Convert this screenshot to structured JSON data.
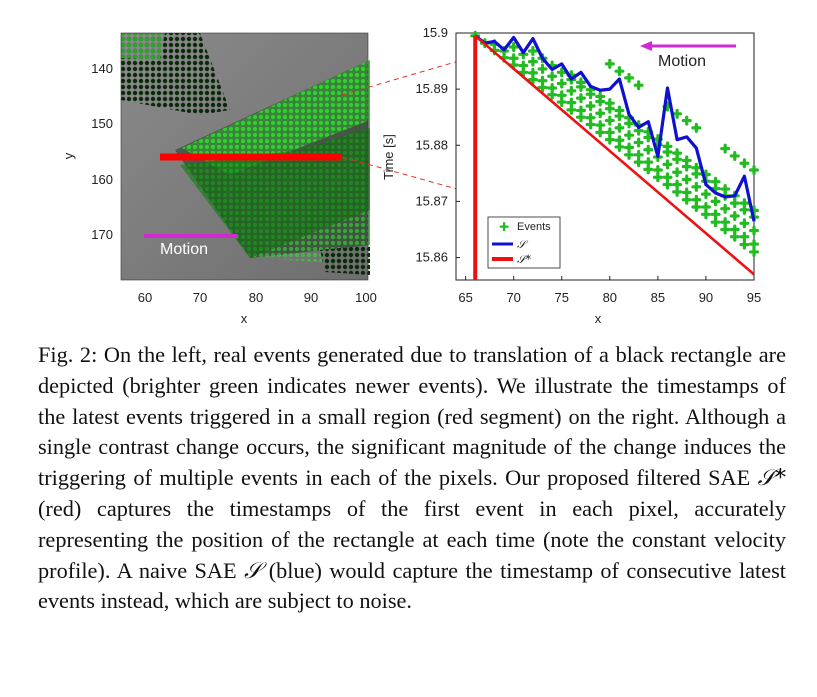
{
  "left_panel": {
    "x_label": "x",
    "y_label": "y",
    "x_ticks": [
      "60",
      "70",
      "80",
      "90",
      "100"
    ],
    "y_ticks": [
      "140",
      "150",
      "160",
      "170"
    ],
    "motion_label": "Motion",
    "colors": {
      "segment": "#ff0000",
      "motion_arrow": "#d22ad2",
      "events": "#1ec81e",
      "background": "#7c7c7c"
    }
  },
  "chart_data": {
    "type": "line",
    "xlabel": "x",
    "ylabel": "Time [s]",
    "xlim": [
      64,
      95
    ],
    "ylim": [
      15.856,
      15.9
    ],
    "x_ticks": [
      "65",
      "70",
      "75",
      "80",
      "85",
      "90",
      "95"
    ],
    "y_ticks": [
      "15.9",
      "15.89",
      "15.88",
      "15.87",
      "15.86"
    ],
    "legend_position": "bottom-left",
    "annotations": [
      {
        "text": "Motion"
      }
    ],
    "series": [
      {
        "name": "Events",
        "style": "markers",
        "color": "#22bb22",
        "x": [
          66,
          67,
          68,
          69,
          70,
          71,
          72,
          73,
          74,
          75,
          76,
          77,
          78,
          79,
          80,
          81,
          82,
          83,
          84,
          85,
          86,
          87,
          88,
          89,
          90,
          91,
          92,
          93,
          94,
          95,
          68,
          69,
          70,
          71,
          72,
          73,
          74,
          75,
          76,
          77,
          78,
          79,
          80,
          81,
          82,
          83,
          84,
          85,
          86,
          87,
          88,
          89,
          90,
          91,
          92,
          93,
          94,
          95,
          70,
          71,
          72,
          73,
          74,
          75,
          76,
          77,
          78,
          79,
          80,
          81,
          82,
          83,
          84,
          85,
          86,
          87,
          88,
          89,
          90,
          91,
          92,
          93,
          94,
          95,
          72,
          73,
          74,
          75,
          76,
          77,
          78,
          79,
          80,
          81,
          82,
          83,
          84,
          85,
          86,
          87,
          88,
          89,
          90,
          91,
          92,
          93,
          94,
          95,
          76,
          77,
          78,
          79,
          80,
          81,
          82,
          83,
          84,
          85,
          86,
          87,
          88,
          89,
          90,
          91,
          92,
          93,
          94,
          95,
          80,
          81,
          82,
          83,
          86,
          87,
          88,
          89,
          92,
          93,
          94,
          95
        ],
        "y": [
          15.8995,
          15.8982,
          15.8969,
          15.8956,
          15.8943,
          15.893,
          15.8917,
          15.8903,
          15.889,
          15.8877,
          15.8863,
          15.885,
          15.8837,
          15.8823,
          15.881,
          15.8797,
          15.8783,
          15.877,
          15.8757,
          15.8743,
          15.873,
          15.8717,
          15.8703,
          15.869,
          15.8677,
          15.8663,
          15.865,
          15.8637,
          15.8623,
          15.861,
          15.898,
          15.8968,
          15.8955,
          15.8942,
          15.8929,
          15.8915,
          15.8902,
          15.8889,
          15.8876,
          15.8862,
          15.8849,
          15.8836,
          15.8823,
          15.8809,
          15.8796,
          15.8783,
          15.877,
          15.8756,
          15.8743,
          15.873,
          15.8716,
          15.8703,
          15.869,
          15.8677,
          15.8663,
          15.865,
          15.8637,
          15.8624,
          15.8975,
          15.8962,
          15.8949,
          15.8936,
          15.8923,
          15.891,
          15.8897,
          15.8884,
          15.887,
          15.8857,
          15.8844,
          15.8831,
          15.8818,
          15.8805,
          15.8792,
          15.8779,
          15.8766,
          15.8752,
          15.8739,
          15.8726,
          15.8713,
          15.87,
          15.8687,
          15.8674,
          15.8661,
          15.8648,
          15.8968,
          15.8955,
          15.8942,
          15.893,
          15.8917,
          15.8904,
          15.8891,
          15.8878,
          15.8865,
          15.8852,
          15.8839,
          15.8826,
          15.8814,
          15.8801,
          15.8788,
          15.8775,
          15.8762,
          15.8749,
          15.8736,
          15.8723,
          15.871,
          15.8697,
          15.8685,
          15.8672,
          15.8925,
          15.8912,
          15.8899,
          15.8887,
          15.8875,
          15.8862,
          15.8849,
          15.8836,
          15.8824,
          15.8811,
          15.8798,
          15.8786,
          15.8773,
          15.876,
          15.8748,
          15.8735,
          15.8722,
          15.871,
          15.8697,
          15.8684,
          15.8945,
          15.8932,
          15.892,
          15.8907,
          15.8869,
          15.8856,
          15.8844,
          15.8831,
          15.8794,
          15.8781,
          15.8768,
          15.8756
        ]
      },
      {
        "name": "S",
        "color": "#1010d0",
        "x": [
          66,
          67,
          68,
          69,
          70,
          71,
          72,
          73,
          74,
          75,
          76,
          77,
          78,
          79,
          80,
          81,
          82,
          83,
          84,
          85,
          86,
          87,
          88,
          89,
          90,
          91,
          92,
          93,
          94,
          95
        ],
        "y": [
          15.8995,
          15.8982,
          15.8985,
          15.897,
          15.8992,
          15.8965,
          15.899,
          15.8955,
          15.8935,
          15.8945,
          15.8918,
          15.893,
          15.8905,
          15.8898,
          15.89,
          15.8918,
          15.8855,
          15.8832,
          15.8842,
          15.878,
          15.8902,
          15.881,
          15.8815,
          15.8795,
          15.873,
          15.8715,
          15.8708,
          15.871,
          15.8745,
          15.8665
        ]
      },
      {
        "name": "S*",
        "color": "#ee1111",
        "x": [
          66,
          95
        ],
        "y": [
          15.8995,
          15.857
        ]
      }
    ]
  },
  "caption": {
    "prefix": "Fig. 2: On the left, real events generated due to translation of a black rectangle are depicted (brighter green indicates newer events). We illustrate the timestamps of the latest events triggered in a small region (red segment) on the right. Although a single contrast change occurs, the significant magnitude of the change induces the triggering of multiple events in each of the pixels. Our proposed filtered SAE ",
    "sym_filtered": "𝒮*",
    "middle": " (red) captures the timestamps of the first event in each pixel, accurately representing the position of the rectangle at each time (note the constant velocity profile). A naive SAE ",
    "sym_naive": "𝒮",
    "suffix": " (blue) would capture the timestamp of consecutive latest events instead, which are subject to noise."
  }
}
